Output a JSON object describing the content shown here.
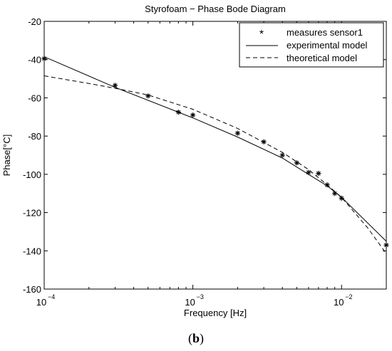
{
  "chart_data": {
    "type": "line",
    "title": "Styrofoam − Phase Bode Diagram",
    "xlabel": "Frequency [Hz]",
    "ylabel": "Phase[°C]",
    "xscale": "log",
    "xlim": [
      0.0001,
      0.02
    ],
    "ylim": [
      -160,
      -20
    ],
    "grid": false,
    "legend_position": "top-right",
    "x_ticks": [
      {
        "value": 0.0001,
        "base": "10",
        "exp": "−4"
      },
      {
        "value": 0.001,
        "base": "10",
        "exp": "−3"
      },
      {
        "value": 0.01,
        "base": "10",
        "exp": "−2"
      }
    ],
    "y_ticks": [
      -20,
      -40,
      -60,
      -80,
      -100,
      -120,
      -140,
      -160
    ],
    "series": [
      {
        "name": "measures sensor1",
        "style": "markers",
        "marker": "*",
        "x": [
          0.0001,
          0.0003,
          0.0005,
          0.0008,
          0.001,
          0.002,
          0.003,
          0.004,
          0.005,
          0.006,
          0.007,
          0.008,
          0.009,
          0.01,
          0.02
        ],
        "y": [
          -39.5,
          -53.5,
          -59,
          -67.5,
          -69,
          -78.5,
          -83,
          -90,
          -94,
          -99,
          -99.5,
          -105.5,
          -110,
          -112.5,
          -137
        ]
      },
      {
        "name": "experimental model",
        "style": "solid",
        "x": [
          0.0001,
          0.0003,
          0.001,
          0.002,
          0.004,
          0.006,
          0.008,
          0.01,
          0.02
        ],
        "y": [
          -38.5,
          -54.5,
          -70.5,
          -80.5,
          -91.5,
          -100,
          -106,
          -112,
          -135
        ]
      },
      {
        "name": "theoretical model",
        "style": "dashed",
        "x": [
          0.0001,
          0.0002,
          0.0003,
          0.0005,
          0.001,
          0.002,
          0.004,
          0.006,
          0.008,
          0.01,
          0.015,
          0.02
        ],
        "y": [
          -48.5,
          -52.5,
          -55,
          -58.5,
          -66,
          -76,
          -88.5,
          -97.5,
          -105.5,
          -112,
          -128,
          -141.5
        ]
      }
    ]
  },
  "caption": {
    "open": "(",
    "letter": "b",
    "close": ")"
  }
}
